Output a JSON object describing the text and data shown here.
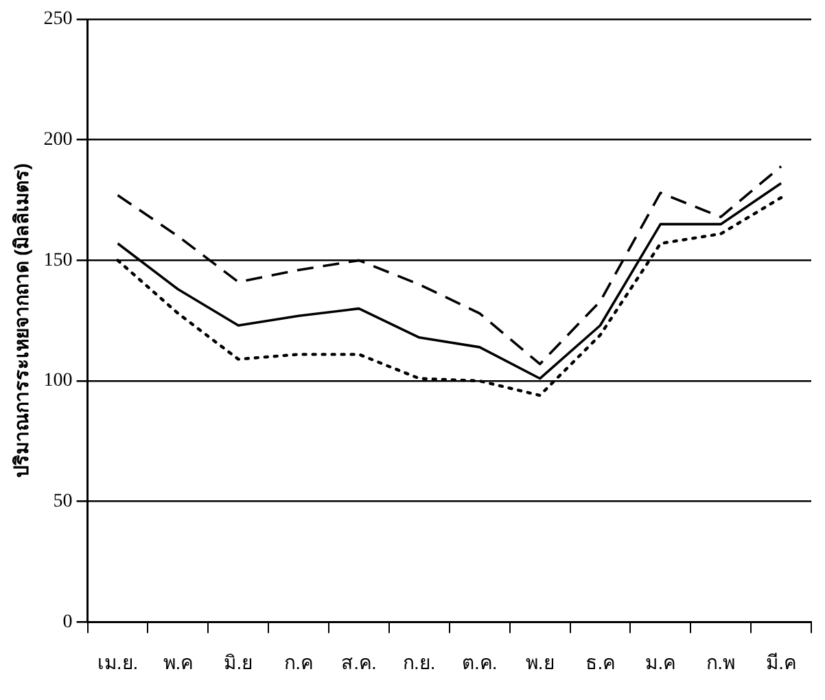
{
  "chart_data": {
    "type": "line",
    "ylabel": "ปริมาณการระเหยจากถาด (มิลลิเมตร)",
    "categories": [
      "เม.ย.",
      "พ.ค",
      "มิ.ย",
      "ก.ค",
      "ส.ค.",
      "ก.ย.",
      "ต.ค.",
      "พ.ย",
      "ธ.ค",
      "ม.ค",
      "ก.พ",
      "มี.ค"
    ],
    "series": [
      {
        "color": "#000000",
        "line_style": "solid",
        "values": [
          157,
          138,
          123,
          127,
          130,
          118,
          114,
          101,
          123,
          165,
          165,
          182
        ]
      },
      {
        "color": "#000000",
        "line_style": "dashed",
        "values": [
          177,
          160,
          141,
          146,
          150,
          140,
          128,
          107,
          133,
          178,
          168,
          189
        ]
      },
      {
        "color": "#000000",
        "line_style": "dotted",
        "values": [
          150,
          128,
          109,
          111,
          111,
          101,
          100,
          94,
          119,
          157,
          161,
          176
        ]
      }
    ],
    "ylim": [
      0,
      250
    ],
    "yticks": [
      0,
      50,
      100,
      150,
      200,
      250
    ],
    "grid": "y",
    "legend": false,
    "marker": "none"
  }
}
